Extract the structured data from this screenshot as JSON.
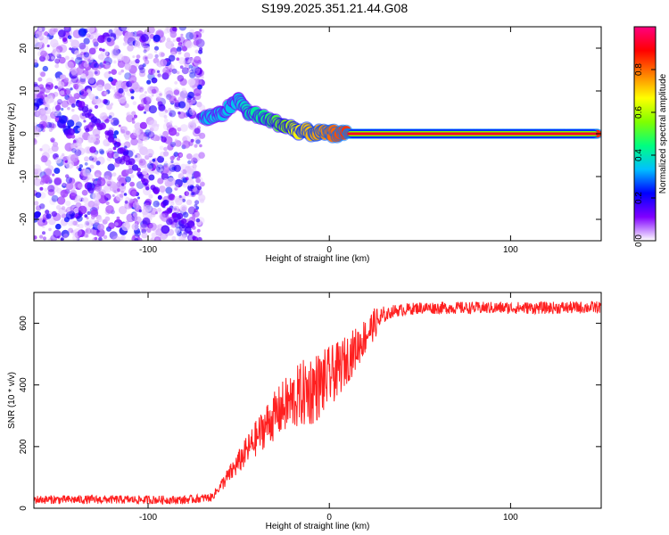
{
  "title": "S199.2025.351.21.44.G08",
  "chart_data": [
    {
      "type": "heatmap",
      "xlabel": "Height of straight line (km)",
      "ylabel": "Frequency (Hz)",
      "xlim": [
        -163,
        150
      ],
      "ylim": [
        -25,
        25
      ],
      "xticks": [
        -100,
        0,
        100
      ],
      "yticks": [
        -20,
        -10,
        0,
        10,
        20
      ],
      "colorbar": {
        "label": "Normalized spectral amplitude",
        "range": [
          0,
          1
        ],
        "ticks": [
          "0.0",
          "0.2",
          "0.4",
          "0.6",
          "0.8"
        ],
        "stops": [
          "#ffffff",
          "#8000ff",
          "#0000ff",
          "#00c0ff",
          "#00ff80",
          "#80ff00",
          "#ffff00",
          "#ff8000",
          "#ff0000",
          "#ff0080"
        ]
      },
      "ridge": [
        {
          "x": -70,
          "y": 3.5,
          "amp": 0.35
        },
        {
          "x": -60,
          "y": 4.5,
          "amp": 0.35
        },
        {
          "x": -50,
          "y": 8.0,
          "amp": 0.35
        },
        {
          "x": -45,
          "y": 5.0,
          "amp": 0.4
        },
        {
          "x": -35,
          "y": 3.5,
          "amp": 0.45
        },
        {
          "x": -25,
          "y": 2.0,
          "amp": 0.55
        },
        {
          "x": -15,
          "y": 0.5,
          "amp": 0.7
        },
        {
          "x": -5,
          "y": 0.2,
          "amp": 0.75
        },
        {
          "x": 10,
          "y": 0.0,
          "amp": 0.85
        },
        {
          "x": 148,
          "y": 0.0,
          "amp": 0.85
        }
      ]
    },
    {
      "type": "line",
      "xlabel": "Height of straight line (km)",
      "ylabel": "SNR (10 * v/v)",
      "xlim": [
        -163,
        150
      ],
      "ylim": [
        0,
        700
      ],
      "xticks": [
        -100,
        0,
        100
      ],
      "yticks": [
        0,
        200,
        400,
        600
      ],
      "color": "#ff2020",
      "series": [
        {
          "name": "SNR",
          "x": [
            -163,
            -120,
            -80,
            -65,
            -55,
            -45,
            -35,
            -25,
            -15,
            -5,
            5,
            15,
            25,
            35,
            50,
            80,
            120,
            150
          ],
          "y": [
            28,
            28,
            27,
            35,
            110,
            190,
            270,
            330,
            370,
            400,
            450,
            520,
            600,
            640,
            650,
            650,
            650,
            652
          ]
        }
      ]
    }
  ]
}
